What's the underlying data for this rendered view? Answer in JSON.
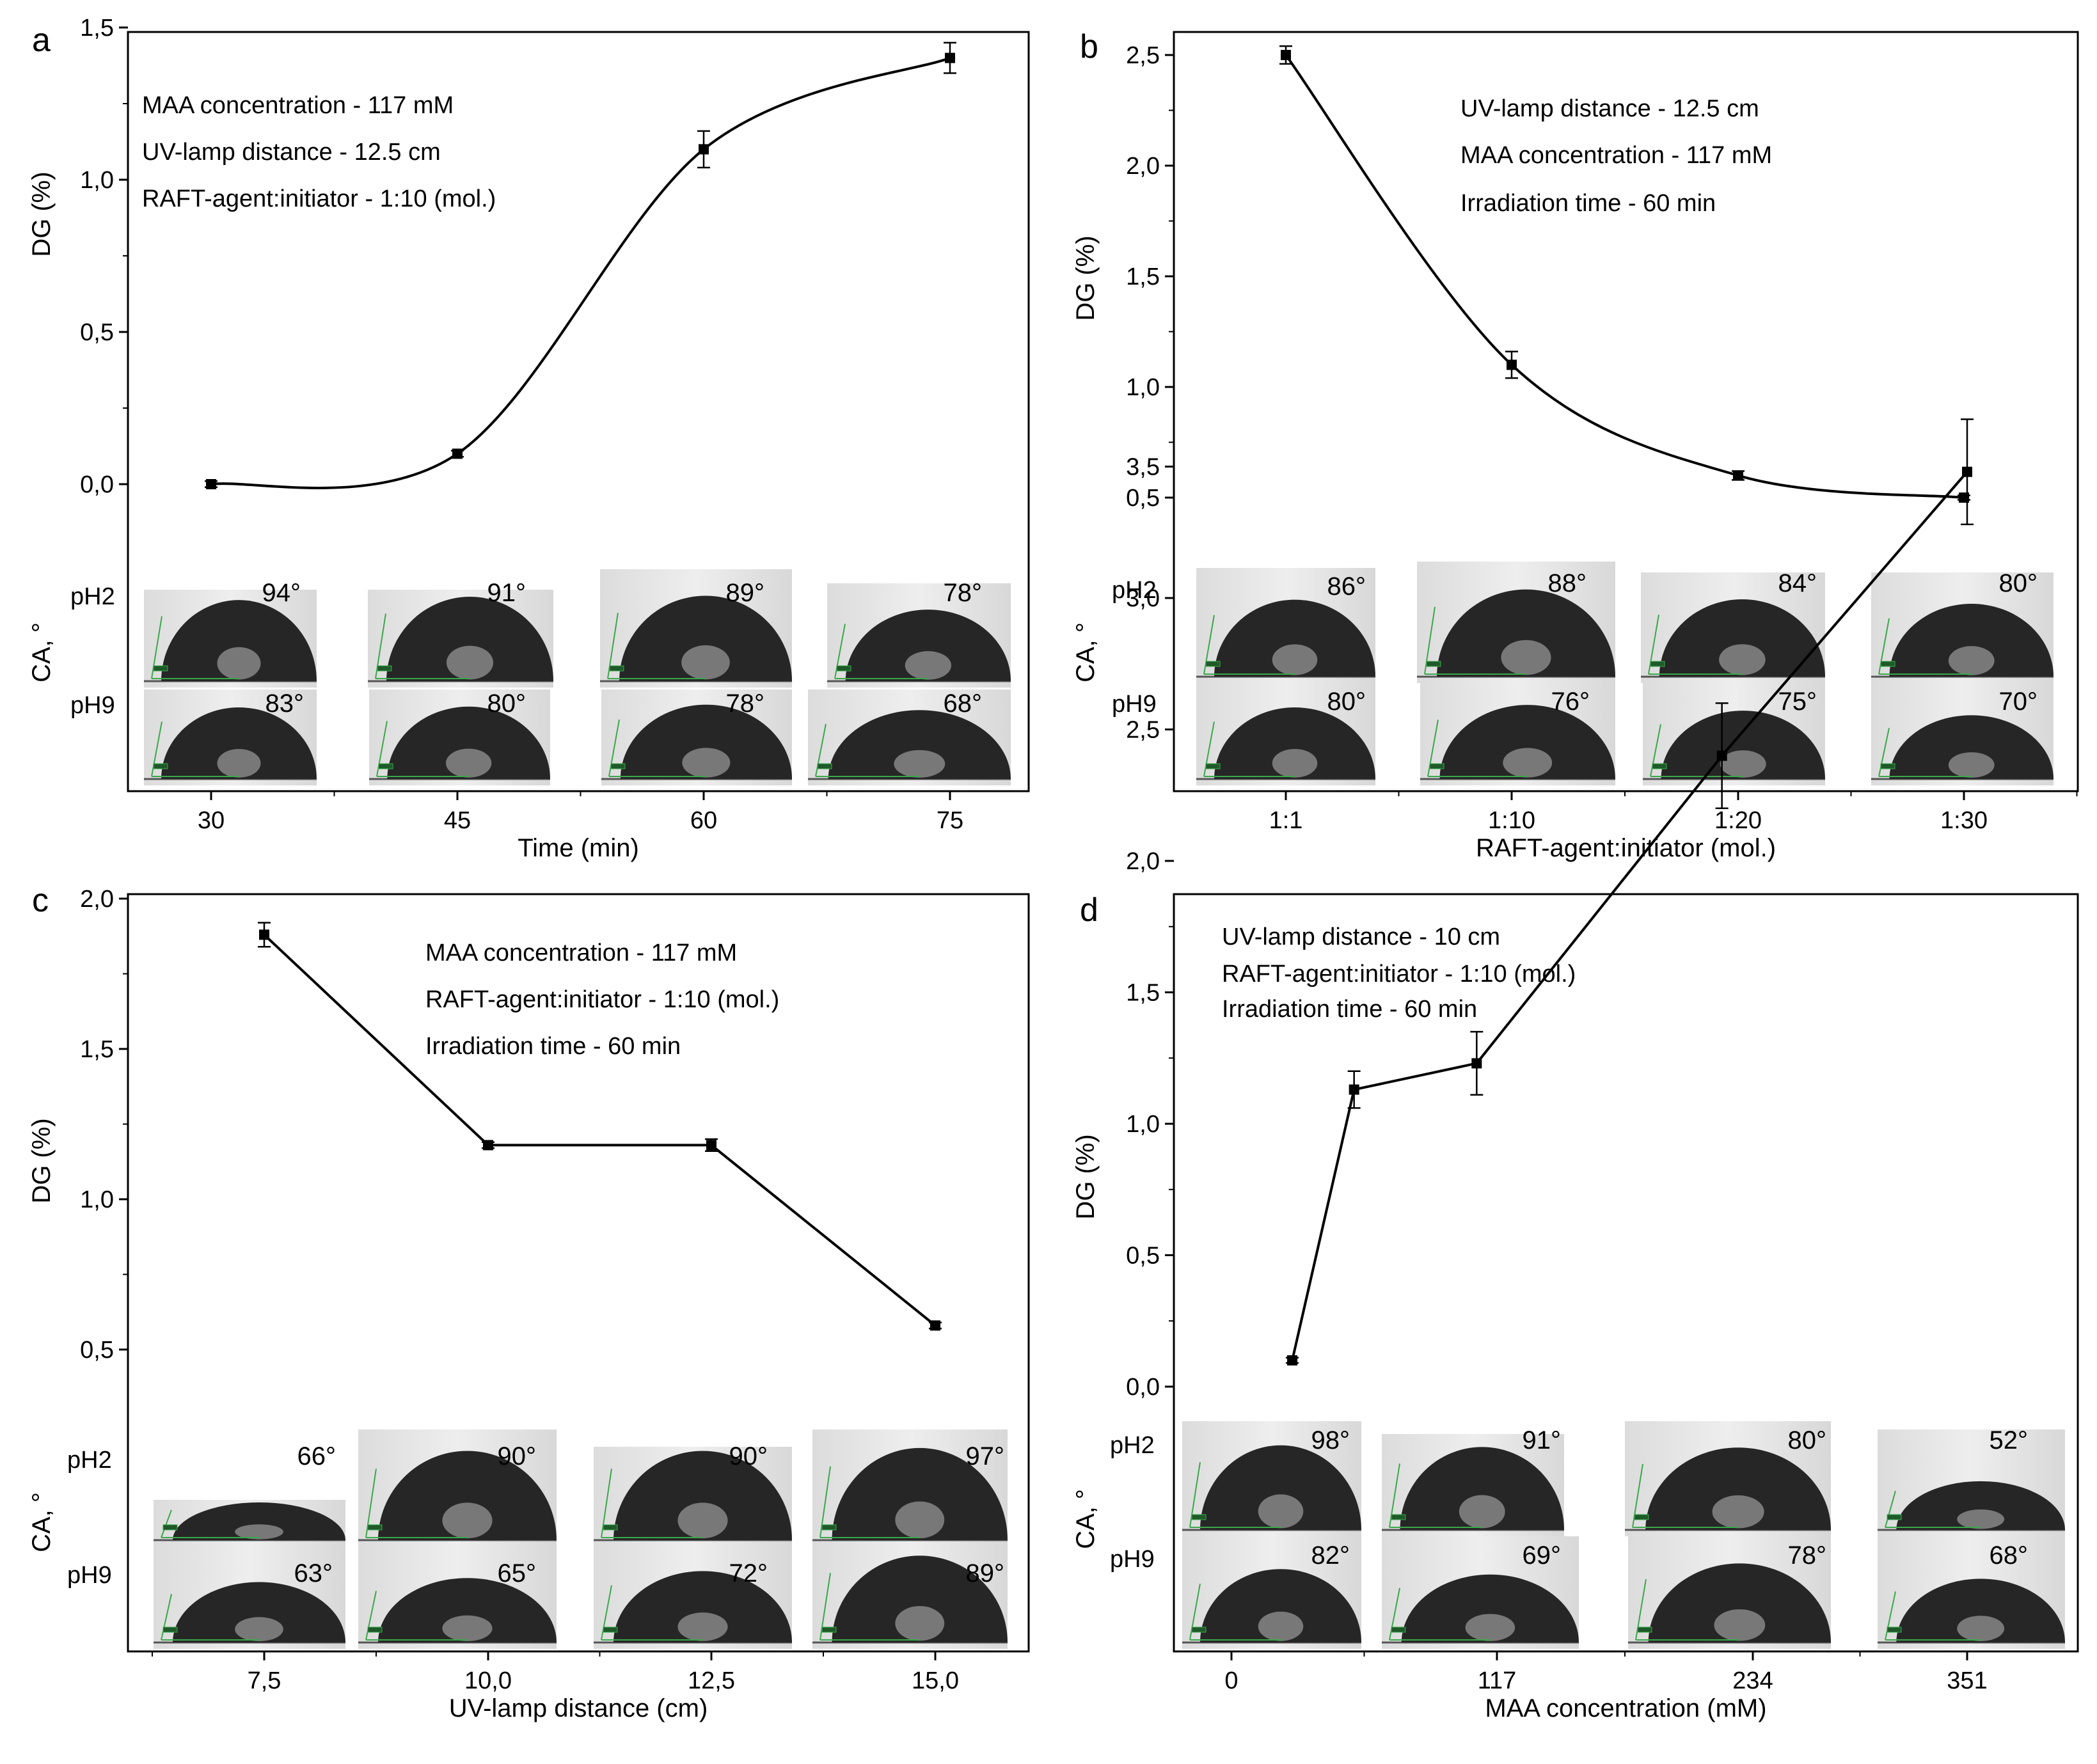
{
  "figure": {
    "panels": [
      {
        "letter": "a",
        "type": "line",
        "x_label": "Time (min)",
        "y_label": "DG (%)",
        "ca_label": "CA, °",
        "x_ticks": [
          {
            "label": "30"
          },
          {
            "label": "45"
          },
          {
            "label": "60"
          },
          {
            "label": "75"
          }
        ],
        "y_ticks": [
          "0,0",
          "0,5",
          "1,0",
          "1,5"
        ],
        "ylim": [
          -0.25,
          1.5
        ],
        "points": [
          {
            "x": "30",
            "y": 0.0,
            "err": 0.01
          },
          {
            "x": "45",
            "y": 0.1,
            "err": 0.01
          },
          {
            "x": "60",
            "y": 1.1,
            "err": 0.06
          },
          {
            "x": "75",
            "y": 1.4,
            "err": 0.05
          }
        ],
        "smooth": true,
        "conditions": [
          "MAA concentration - 117 mM",
          "UV-lamp distance - 12.5 cm",
          "RAFT-agent:initiator - 1:10 (mol.)"
        ],
        "ph_labels": [
          "pH2",
          "pH9"
        ],
        "angles_ph2": [
          "94°",
          "91°",
          "89°",
          "78°"
        ],
        "angles_ph9": [
          "83°",
          "80°",
          "78°",
          "68°"
        ]
      },
      {
        "letter": "b",
        "type": "line",
        "x_label": "RAFT-agent:initiator (mol.)",
        "y_label": "DG (%)",
        "ca_label": "CA, °",
        "x_ticks": [
          {
            "label": "1:1"
          },
          {
            "label": "1:10"
          },
          {
            "label": "1:20"
          },
          {
            "label": "1:30"
          }
        ],
        "y_ticks": [
          "0,5",
          "1,0",
          "1,5",
          "2,0",
          "2,5"
        ],
        "ylim": [
          0.5,
          2.5
        ],
        "points": [
          {
            "x": "1:1",
            "y": 2.5,
            "err": 0.04
          },
          {
            "x": "1:10",
            "y": 1.1,
            "err": 0.06
          },
          {
            "x": "1:20",
            "y": 0.6,
            "err": 0.02
          },
          {
            "x": "1:30",
            "y": 0.5,
            "err": 0.01
          }
        ],
        "smooth": true,
        "conditions": [
          "UV-lamp distance - 12.5 cm",
          "MAA concentration - 117 mM",
          "Irradiation time - 60 min"
        ],
        "ph_labels": [
          "pH2",
          "pH9"
        ],
        "angles_ph2": [
          "86°",
          "88°",
          "84°",
          "80°"
        ],
        "angles_ph9": [
          "80°",
          "76°",
          "75°",
          "70°"
        ]
      },
      {
        "letter": "c",
        "type": "line",
        "x_label": "UV-lamp distance (cm)",
        "y_label": "DG (%)",
        "ca_label": "CA, °",
        "x_ticks": [
          {
            "label": "7,5"
          },
          {
            "label": "10,0"
          },
          {
            "label": "12,5"
          },
          {
            "label": "15,0"
          }
        ],
        "y_ticks": [
          "0,5",
          "1,0",
          "1,5",
          "2,0"
        ],
        "ylim": [
          0.5,
          2.0
        ],
        "points": [
          {
            "x": "7,5",
            "y": 1.88,
            "err": 0.04
          },
          {
            "x": "10,0",
            "y": 1.18,
            "err": 0.01
          },
          {
            "x": "12,5",
            "y": 1.18,
            "err": 0.02
          },
          {
            "x": "15,0",
            "y": 0.58,
            "err": 0.01
          }
        ],
        "smooth": false,
        "conditions": [
          "MAA concentration - 117 mM",
          "RAFT-agent:initiator - 1:10 (mol.)",
          "Irradiation time - 60 min"
        ],
        "ph_labels": [
          "pH2",
          "pH9"
        ],
        "angles_ph2": [
          "66°",
          "90°",
          "90°",
          "97°"
        ],
        "angles_ph9": [
          "63°",
          "65°",
          "72°",
          "89°"
        ]
      },
      {
        "letter": "d",
        "type": "line",
        "x_label": "MAA concentration (mM)",
        "y_label": "DG (%)",
        "ca_label": "CA, °",
        "x_ticks": [
          {
            "label": "0"
          },
          {
            "label": "117"
          },
          {
            "label": "234"
          },
          {
            "label": "351"
          }
        ],
        "y_ticks": [
          "0,0",
          "0,5",
          "1,0",
          "1,5",
          "2,0",
          "2,5",
          "3,0",
          "3,5"
        ],
        "ylim": [
          0.0,
          3.5
        ],
        "points": [
          {
            "x": 29,
            "y": 0.1,
            "err": 0.01
          },
          {
            "x": 58.5,
            "y": 1.13,
            "err": 0.07
          },
          {
            "x": 117,
            "y": 1.23,
            "err": 0.12
          },
          {
            "x": 234,
            "y": 2.4,
            "err": 0.2
          },
          {
            "x": 351,
            "y": 3.48,
            "err": 0.2
          }
        ],
        "smooth": false,
        "conditions": [
          "UV-lamp distance - 10 cm",
          "RAFT-agent:initiator - 1:10 (mol.)",
          "Irradiation time - 60 min"
        ],
        "ph_labels": [
          "pH2",
          "pH9"
        ],
        "angles_ph2": [
          "98°",
          "91°",
          "80°",
          "52°"
        ],
        "angles_ph9": [
          "82°",
          "69°",
          "78°",
          "68°"
        ]
      }
    ]
  },
  "chart_data": [
    {
      "type": "line",
      "title": "",
      "xlabel": "Time (min)",
      "ylabel": "DG (%)",
      "x": [
        30,
        45,
        60,
        75
      ],
      "values": [
        0.0,
        0.1,
        1.1,
        1.4
      ],
      "errors": [
        0.01,
        0.01,
        0.06,
        0.05
      ],
      "ylim": [
        -0.25,
        1.5
      ]
    },
    {
      "type": "line",
      "title": "",
      "xlabel": "RAFT-agent:initiator (mol.)",
      "ylabel": "DG (%)",
      "categories": [
        "1:1",
        "1:10",
        "1:20",
        "1:30"
      ],
      "values": [
        2.5,
        1.1,
        0.6,
        0.5
      ],
      "errors": [
        0.04,
        0.06,
        0.02,
        0.01
      ],
      "ylim": [
        0.5,
        2.5
      ]
    },
    {
      "type": "line",
      "title": "",
      "xlabel": "UV-lamp distance (cm)",
      "ylabel": "DG (%)",
      "x": [
        7.5,
        10.0,
        12.5,
        15.0
      ],
      "values": [
        1.88,
        1.18,
        1.18,
        0.58
      ],
      "errors": [
        0.04,
        0.01,
        0.02,
        0.01
      ],
      "ylim": [
        0.5,
        2.0
      ]
    },
    {
      "type": "line",
      "title": "",
      "xlabel": "MAA concentration (mM)",
      "ylabel": "DG (%)",
      "x": [
        29,
        58.5,
        117,
        234,
        351
      ],
      "values": [
        0.1,
        1.13,
        1.23,
        2.4,
        3.48
      ],
      "errors": [
        0.01,
        0.07,
        0.12,
        0.2,
        0.2
      ],
      "ylim": [
        0.0,
        3.5
      ]
    }
  ],
  "colors": {
    "line": "#000000",
    "droplet": "#262626",
    "background_photo": "#e6e6e6",
    "guide_line": "#3aa84a"
  }
}
